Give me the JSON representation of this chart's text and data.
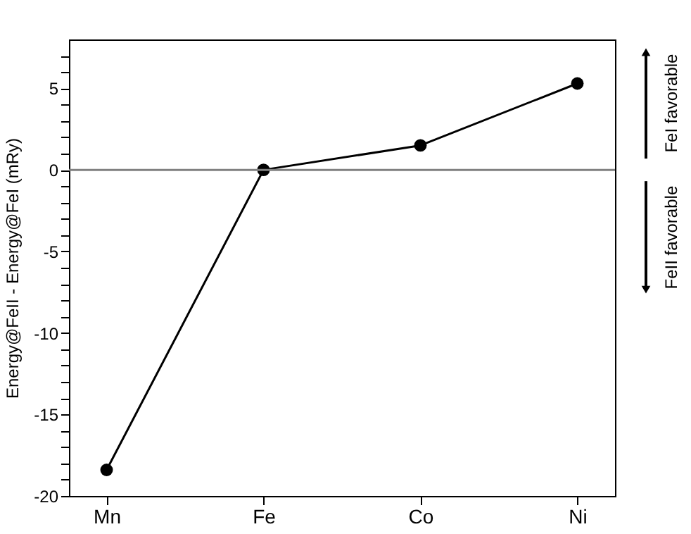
{
  "chart_data": {
    "type": "line",
    "ylabel": "Energy@FeII - Energy@FeI (mRy)",
    "categories": [
      "Mn",
      "Fe",
      "Co",
      "Ni"
    ],
    "series": [
      {
        "color": "#000000",
        "values": [
          -18.4,
          0,
          1.5,
          5.3
        ]
      }
    ],
    "ylim": [
      -20,
      8
    ],
    "yticks": [
      -20,
      {
        "value": -19,
        "label": null
      },
      {
        "value": -18,
        "label": null
      },
      {
        "value": -17,
        "label": null
      },
      {
        "value": -16,
        "label": null
      },
      -15,
      {
        "value": -14,
        "label": null
      },
      {
        "value": -13,
        "label": null
      },
      {
        "value": -12,
        "label": null
      },
      {
        "value": -11,
        "label": null
      },
      -10,
      {
        "value": -9,
        "label": null
      },
      {
        "value": -8,
        "label": null
      },
      {
        "value": -7,
        "label": null
      },
      {
        "value": -6,
        "label": null
      },
      -5,
      {
        "value": -4,
        "label": null
      },
      {
        "value": -3,
        "label": null
      },
      {
        "value": -2,
        "label": null
      },
      {
        "value": -1,
        "label": null
      },
      0,
      {
        "value": 1,
        "label": null
      },
      {
        "value": 2,
        "label": null
      },
      {
        "value": 3,
        "label": null
      },
      {
        "value": 4,
        "label": null
      },
      5,
      {
        "value": 6,
        "label": null
      },
      {
        "value": 7,
        "label": null
      }
    ],
    "ref_lines": [
      {
        "axis": "y",
        "value": 0,
        "color": "#808080"
      }
    ],
    "annotations": [
      "FeI favorable",
      "FeII favorable"
    ],
    "marker": "circle",
    "line_style": "solid",
    "grid": false,
    "legend": false
  }
}
